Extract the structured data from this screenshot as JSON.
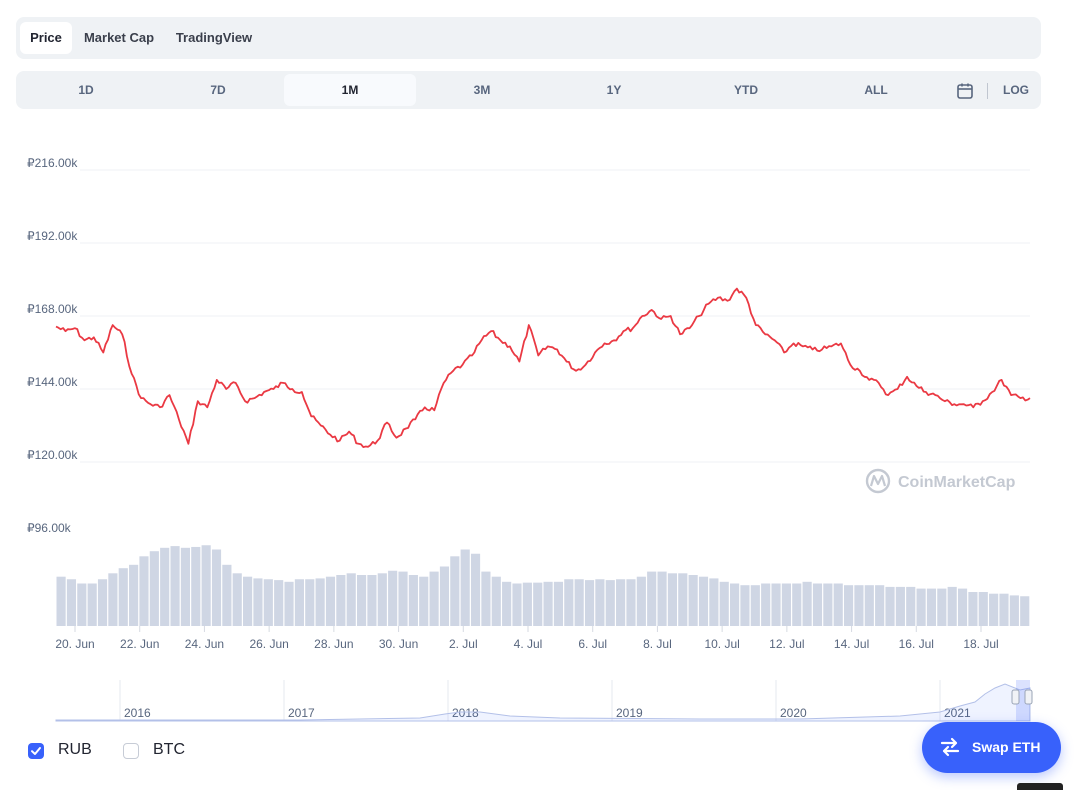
{
  "tabs": [
    {
      "label": "Price",
      "active": true
    },
    {
      "label": "Market Cap",
      "active": false
    },
    {
      "label": "TradingView",
      "active": false
    }
  ],
  "ranges": [
    {
      "label": "1D",
      "active": false
    },
    {
      "label": "7D",
      "active": false
    },
    {
      "label": "1M",
      "active": true
    },
    {
      "label": "3M",
      "active": false
    },
    {
      "label": "1Y",
      "active": false
    },
    {
      "label": "YTD",
      "active": false
    },
    {
      "label": "ALL",
      "active": false
    }
  ],
  "toolbar": {
    "calendar_icon": "calendar-icon",
    "log_label": "LOG"
  },
  "chart_data": {
    "type": "line",
    "y_tick_labels": [
      "₽216.00k",
      "₽192.00k",
      "₽168.00k",
      "₽144.00k",
      "₽120.00k",
      "₽96.00k"
    ],
    "y_ticks": [
      216000,
      192000,
      168000,
      144000,
      120000,
      96000
    ],
    "ylim": [
      96000,
      216000
    ],
    "x_tick_labels": [
      "20. Jun",
      "22. Jun",
      "24. Jun",
      "26. Jun",
      "28. Jun",
      "30. Jun",
      "2. Jul",
      "4. Jul",
      "6. Jul",
      "8. Jul",
      "10. Jul",
      "12. Jul",
      "14. Jul",
      "16. Jul",
      "18. Jul"
    ],
    "price_color": "#ea3943",
    "volume_color": "#cfd6e4",
    "grid": true,
    "series": [
      {
        "values": [
          164500,
          163000,
          164000,
          160000,
          161000,
          156000,
          165000,
          162000,
          149000,
          141000,
          139000,
          138000,
          142000,
          134000,
          126000,
          140000,
          138000,
          147000,
          144000,
          146000,
          140000,
          141000,
          143000,
          144000,
          146000,
          144000,
          143000,
          135000,
          132000,
          129000,
          127000,
          130000,
          126000,
          125000,
          127000,
          133000,
          128000,
          131000,
          134000,
          138000,
          137000,
          146000,
          150000,
          152000,
          155000,
          160000,
          163000,
          160000,
          158000,
          153000,
          165000,
          155000,
          158000,
          157000,
          153000,
          150000,
          152000,
          156000,
          159000,
          160000,
          163000,
          164000,
          168000,
          170000,
          167000,
          168000,
          162000,
          164000,
          168000,
          172000,
          174000,
          173000,
          177000,
          174000,
          165000,
          162000,
          160000,
          156000,
          159000,
          158000,
          157000,
          157000,
          158000,
          159000,
          152000,
          150000,
          147000,
          146000,
          142000,
          144000,
          148000,
          145000,
          143000,
          142000,
          140000,
          139000,
          139000,
          138000,
          140000,
          143000,
          147000,
          142000,
          141000,
          141000
        ]
      }
    ],
    "volume": {
      "values": [
        0.58,
        0.55,
        0.5,
        0.5,
        0.55,
        0.62,
        0.68,
        0.72,
        0.82,
        0.88,
        0.92,
        0.94,
        0.92,
        0.93,
        0.95,
        0.9,
        0.72,
        0.62,
        0.58,
        0.56,
        0.55,
        0.54,
        0.52,
        0.55,
        0.55,
        0.56,
        0.58,
        0.6,
        0.62,
        0.6,
        0.6,
        0.62,
        0.65,
        0.64,
        0.6,
        0.58,
        0.64,
        0.7,
        0.82,
        0.9,
        0.85,
        0.64,
        0.58,
        0.52,
        0.5,
        0.51,
        0.51,
        0.52,
        0.52,
        0.55,
        0.55,
        0.54,
        0.55,
        0.54,
        0.55,
        0.55,
        0.58,
        0.64,
        0.64,
        0.62,
        0.62,
        0.6,
        0.58,
        0.56,
        0.52,
        0.5,
        0.48,
        0.48,
        0.5,
        0.5,
        0.5,
        0.5,
        0.52,
        0.5,
        0.5,
        0.5,
        0.48,
        0.48,
        0.48,
        0.48,
        0.46,
        0.46,
        0.46,
        0.44,
        0.44,
        0.44,
        0.46,
        0.44,
        0.4,
        0.4,
        0.38,
        0.38,
        0.36,
        0.35
      ],
      "ylim": [
        0,
        1
      ]
    }
  },
  "navigator": {
    "year_labels": [
      "2016",
      "2017",
      "2018",
      "2019",
      "2020",
      "2021"
    ]
  },
  "watermark": {
    "text": "CoinMarketCap",
    "icon": "coinmarketcap-logo-icon"
  },
  "legend": [
    {
      "label": "RUB",
      "checked": true
    },
    {
      "label": "BTC",
      "checked": false
    }
  ],
  "swap": {
    "label": "Swap ETH",
    "icon": "swap-arrows-icon"
  }
}
